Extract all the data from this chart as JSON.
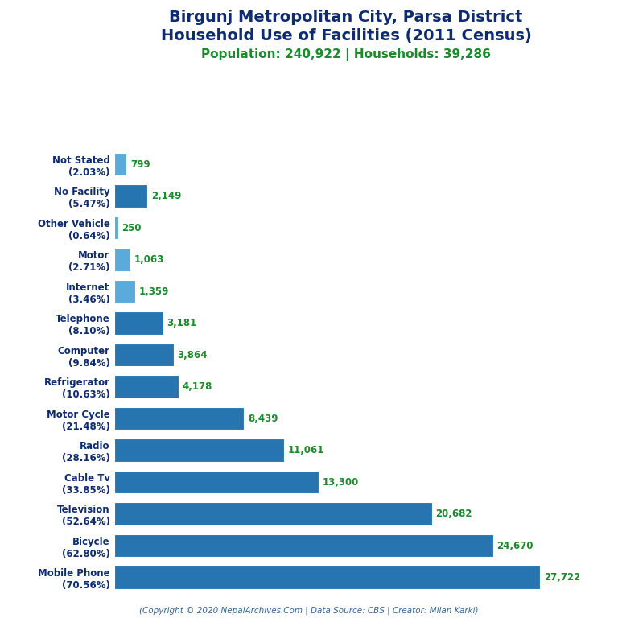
{
  "title_line1": "Birgunj Metropolitan City, Parsa District",
  "title_line2": "Household Use of Facilities (2011 Census)",
  "subtitle": "Population: 240,922 | Households: 39,286",
  "categories": [
    "Mobile Phone\n(70.56%)",
    "Bicycle\n(62.80%)",
    "Television\n(52.64%)",
    "Cable Tv\n(33.85%)",
    "Radio\n(28.16%)",
    "Motor Cycle\n(21.48%)",
    "Refrigerator\n(10.63%)",
    "Computer\n(9.84%)",
    "Telephone\n(8.10%)",
    "Internet\n(3.46%)",
    "Motor\n(2.71%)",
    "Other Vehicle\n(0.64%)",
    "No Facility\n(5.47%)",
    "Not Stated\n(2.03%)"
  ],
  "values": [
    27722,
    24670,
    20682,
    13300,
    11061,
    8439,
    4178,
    3864,
    3181,
    1359,
    1063,
    250,
    2149,
    799
  ],
  "bar_colors": [
    "#2775b0",
    "#2775b0",
    "#2775b0",
    "#2775b0",
    "#2775b0",
    "#2775b0",
    "#2775b0",
    "#2775b0",
    "#2775b0",
    "#5aabdb",
    "#5aabdb",
    "#5aabdb",
    "#2775b0",
    "#5aabdb"
  ],
  "title_color": "#0d2b6e",
  "subtitle_color": "#1a8a2a",
  "label_color": "#0d2b6e",
  "value_color": "#1a8a2a",
  "background_color": "#ffffff",
  "xlim": [
    0,
    31000
  ],
  "footer": "(Copyright © 2020 NepalArchives.Com | Data Source: CBS | Creator: Milan Karki)",
  "title_fontsize": 14,
  "subtitle_fontsize": 11,
  "label_fontsize": 8.5,
  "value_fontsize": 8.5
}
